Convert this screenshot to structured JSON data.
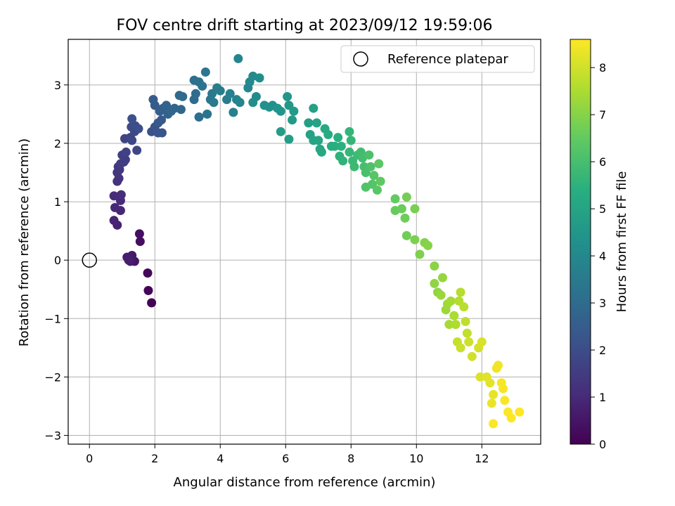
{
  "chart_data": {
    "type": "scatter",
    "title": "FOV centre drift starting at 2023/09/12 19:59:06",
    "xlabel": "Angular distance from reference (arcmin)",
    "ylabel": "Rotation from reference (arcmin)",
    "xlim": [
      -0.65,
      13.8
    ],
    "ylim": [
      -3.15,
      3.78
    ],
    "xticks": [
      0,
      2,
      4,
      6,
      8,
      10,
      12
    ],
    "yticks": [
      -3,
      -2,
      -1,
      0,
      1,
      2,
      3
    ],
    "grid": true,
    "legend": {
      "position": "top-right",
      "entries": [
        "Reference platepar"
      ]
    },
    "colorbar": {
      "label": "Hours from first FF file",
      "min": 0,
      "max": 8.6,
      "ticks": [
        0,
        1,
        2,
        3,
        4,
        5,
        6,
        7,
        8
      ],
      "colormap": "viridis"
    },
    "reference_point": {
      "x": 0,
      "y": 0
    },
    "points": [
      [
        1.9,
        -0.73,
        0.05
      ],
      [
        1.8,
        -0.52,
        0.1
      ],
      [
        1.78,
        -0.22,
        0.15
      ],
      [
        1.55,
        0.32,
        0.3
      ],
      [
        1.53,
        0.45,
        0.35
      ],
      [
        1.38,
        -0.02,
        0.5
      ],
      [
        1.3,
        0.08,
        0.55
      ],
      [
        1.25,
        -0.02,
        0.6
      ],
      [
        1.15,
        0.05,
        0.65
      ],
      [
        1.2,
        0.0,
        0.7
      ],
      [
        0.85,
        0.6,
        0.8
      ],
      [
        0.75,
        0.68,
        0.85
      ],
      [
        0.95,
        0.85,
        0.9
      ],
      [
        0.78,
        0.9,
        0.95
      ],
      [
        0.95,
        1.02,
        1.0
      ],
      [
        0.75,
        1.1,
        1.05
      ],
      [
        0.97,
        1.12,
        1.1
      ],
      [
        0.85,
        1.35,
        1.2
      ],
      [
        0.9,
        1.4,
        1.25
      ],
      [
        0.85,
        1.5,
        1.3
      ],
      [
        0.92,
        1.55,
        1.35
      ],
      [
        0.88,
        1.6,
        1.4
      ],
      [
        0.95,
        1.65,
        1.45
      ],
      [
        1.05,
        1.68,
        1.5
      ],
      [
        1.1,
        1.72,
        1.55
      ],
      [
        1.0,
        1.8,
        1.6
      ],
      [
        1.12,
        1.85,
        1.65
      ],
      [
        1.08,
        2.08,
        1.7
      ],
      [
        1.25,
        2.1,
        1.75
      ],
      [
        1.45,
        1.88,
        1.8
      ],
      [
        1.3,
        2.05,
        1.85
      ],
      [
        1.38,
        2.2,
        1.9
      ],
      [
        1.28,
        2.28,
        1.95
      ],
      [
        1.4,
        2.3,
        2.0
      ],
      [
        1.5,
        2.25,
        2.05
      ],
      [
        1.3,
        2.42,
        2.1
      ],
      [
        1.9,
        2.2,
        2.15
      ],
      [
        2.0,
        2.28,
        2.2
      ],
      [
        2.1,
        2.18,
        2.25
      ],
      [
        2.22,
        2.18,
        2.3
      ],
      [
        2.1,
        2.35,
        2.35
      ],
      [
        2.2,
        2.4,
        2.4
      ],
      [
        1.95,
        2.75,
        2.45
      ],
      [
        2.0,
        2.65,
        2.5
      ],
      [
        2.15,
        2.55,
        2.55
      ],
      [
        2.25,
        2.6,
        2.6
      ],
      [
        2.4,
        2.5,
        2.65
      ],
      [
        2.35,
        2.65,
        2.7
      ],
      [
        2.6,
        2.6,
        2.75
      ],
      [
        2.5,
        2.55,
        2.8
      ],
      [
        2.8,
        2.58,
        2.85
      ],
      [
        2.75,
        2.82,
        2.9
      ],
      [
        2.85,
        2.8,
        2.95
      ],
      [
        3.2,
        2.75,
        3.0
      ],
      [
        3.25,
        2.85,
        3.05
      ],
      [
        3.35,
        2.45,
        3.1
      ],
      [
        3.2,
        3.08,
        3.15
      ],
      [
        3.35,
        3.05,
        3.2
      ],
      [
        3.45,
        2.98,
        3.25
      ],
      [
        3.6,
        2.5,
        3.3
      ],
      [
        3.55,
        3.22,
        3.35
      ],
      [
        3.7,
        2.75,
        3.4
      ],
      [
        3.75,
        2.85,
        3.45
      ],
      [
        3.8,
        2.7,
        3.5
      ],
      [
        3.9,
        2.95,
        3.55
      ],
      [
        4.0,
        2.9,
        3.6
      ],
      [
        4.2,
        2.75,
        3.65
      ],
      [
        4.3,
        2.85,
        3.7
      ],
      [
        4.4,
        2.53,
        3.75
      ],
      [
        4.5,
        2.75,
        3.8
      ],
      [
        4.6,
        2.7,
        3.85
      ],
      [
        4.55,
        3.45,
        3.9
      ],
      [
        4.85,
        2.95,
        3.95
      ],
      [
        4.9,
        3.05,
        4.0
      ],
      [
        5.0,
        3.15,
        4.05
      ],
      [
        5.1,
        2.8,
        4.1
      ],
      [
        5.0,
        2.7,
        4.15
      ],
      [
        5.2,
        3.12,
        4.2
      ],
      [
        5.35,
        2.65,
        4.25
      ],
      [
        5.5,
        2.62,
        4.3
      ],
      [
        5.6,
        2.65,
        4.35
      ],
      [
        5.75,
        2.6,
        4.4
      ],
      [
        5.85,
        2.55,
        4.45
      ],
      [
        6.05,
        2.8,
        4.5
      ],
      [
        6.1,
        2.65,
        4.55
      ],
      [
        6.25,
        2.55,
        4.6
      ],
      [
        6.2,
        2.4,
        4.65
      ],
      [
        5.85,
        2.2,
        4.7
      ],
      [
        6.1,
        2.07,
        4.75
      ],
      [
        6.7,
        2.35,
        4.8
      ],
      [
        6.85,
        2.6,
        4.85
      ],
      [
        6.75,
        2.15,
        4.9
      ],
      [
        6.95,
        2.35,
        4.95
      ],
      [
        6.85,
        2.05,
        5.0
      ],
      [
        7.0,
        2.05,
        5.05
      ],
      [
        7.05,
        1.9,
        5.1
      ],
      [
        7.1,
        1.85,
        5.15
      ],
      [
        7.2,
        2.25,
        5.2
      ],
      [
        7.3,
        2.15,
        5.25
      ],
      [
        7.4,
        1.95,
        5.3
      ],
      [
        7.5,
        1.95,
        5.35
      ],
      [
        7.6,
        2.1,
        5.4
      ],
      [
        7.7,
        1.95,
        5.45
      ],
      [
        7.65,
        1.78,
        5.5
      ],
      [
        7.75,
        1.7,
        5.55
      ],
      [
        7.95,
        2.2,
        5.6
      ],
      [
        8.0,
        2.05,
        5.65
      ],
      [
        7.95,
        1.85,
        5.7
      ],
      [
        8.05,
        1.7,
        5.75
      ],
      [
        8.1,
        1.6,
        5.8
      ],
      [
        8.2,
        1.8,
        5.85
      ],
      [
        8.3,
        1.85,
        5.9
      ],
      [
        8.35,
        1.75,
        5.95
      ],
      [
        8.4,
        1.6,
        6.0
      ],
      [
        8.45,
        1.5,
        6.05
      ],
      [
        8.55,
        1.8,
        6.1
      ],
      [
        8.6,
        1.6,
        6.15
      ],
      [
        8.45,
        1.25,
        6.2
      ],
      [
        8.65,
        1.3,
        6.25
      ],
      [
        8.7,
        1.45,
        6.3
      ],
      [
        8.8,
        1.2,
        6.35
      ],
      [
        8.85,
        1.65,
        6.4
      ],
      [
        8.9,
        1.35,
        6.45
      ],
      [
        9.35,
        1.05,
        6.5
      ],
      [
        9.35,
        0.85,
        6.55
      ],
      [
        9.55,
        0.88,
        6.6
      ],
      [
        9.65,
        0.72,
        6.65
      ],
      [
        9.7,
        0.42,
        6.7
      ],
      [
        9.7,
        1.08,
        6.75
      ],
      [
        9.95,
        0.88,
        6.8
      ],
      [
        9.95,
        0.35,
        6.85
      ],
      [
        10.1,
        0.1,
        6.9
      ],
      [
        10.25,
        0.3,
        6.95
      ],
      [
        10.35,
        0.25,
        7.0
      ],
      [
        10.55,
        -0.1,
        7.05
      ],
      [
        10.55,
        -0.4,
        7.1
      ],
      [
        10.65,
        -0.55,
        7.15
      ],
      [
        10.8,
        -0.3,
        7.2
      ],
      [
        10.75,
        -0.6,
        7.25
      ],
      [
        10.9,
        -0.85,
        7.3
      ],
      [
        10.95,
        -0.75,
        7.35
      ],
      [
        11.05,
        -0.7,
        7.4
      ],
      [
        11.0,
        -1.1,
        7.45
      ],
      [
        11.15,
        -0.95,
        7.5
      ],
      [
        11.2,
        -1.1,
        7.55
      ],
      [
        11.3,
        -0.7,
        7.6
      ],
      [
        11.35,
        -0.55,
        7.65
      ],
      [
        11.45,
        -0.8,
        7.7
      ],
      [
        11.5,
        -1.05,
        7.75
      ],
      [
        11.55,
        -1.25,
        7.8
      ],
      [
        11.25,
        -1.4,
        7.85
      ],
      [
        11.35,
        -1.5,
        7.9
      ],
      [
        11.6,
        -1.4,
        7.95
      ],
      [
        11.7,
        -1.65,
        8.0
      ],
      [
        11.9,
        -1.5,
        8.05
      ],
      [
        12.0,
        -1.4,
        8.1
      ],
      [
        11.95,
        -2.0,
        8.15
      ],
      [
        12.15,
        -2.0,
        8.2
      ],
      [
        12.25,
        -2.1,
        8.25
      ],
      [
        12.35,
        -2.3,
        8.3
      ],
      [
        12.3,
        -2.45,
        8.35
      ],
      [
        12.45,
        -1.85,
        8.4
      ],
      [
        12.5,
        -1.8,
        8.45
      ],
      [
        12.6,
        -2.1,
        8.5
      ],
      [
        12.65,
        -2.2,
        8.53
      ],
      [
        12.7,
        -2.4,
        8.55
      ],
      [
        12.35,
        -2.8,
        8.56
      ],
      [
        12.8,
        -2.6,
        8.57
      ],
      [
        12.9,
        -2.7,
        8.58
      ],
      [
        13.15,
        -2.6,
        8.6
      ]
    ]
  }
}
